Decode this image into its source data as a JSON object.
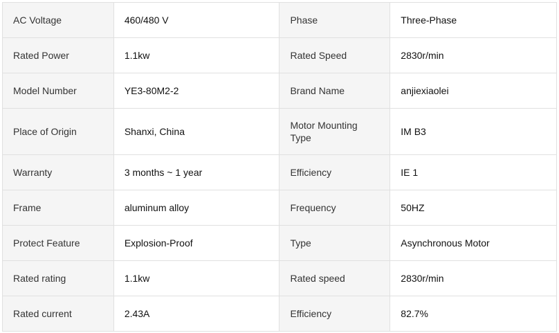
{
  "rows": [
    [
      "AC Voltage",
      "460/480 V",
      "Phase",
      "Three-Phase"
    ],
    [
      "Rated Power",
      "1.1kw",
      "Rated Speed",
      "2830r/min"
    ],
    [
      "Model Number",
      "YE3-80M2-2",
      "Brand Name",
      "anjiexiaolei"
    ],
    [
      "Place of Origin",
      "Shanxi, China",
      "Motor Mounting Type",
      "IM B3"
    ],
    [
      "Warranty",
      "3 months ~ 1 year",
      "Efficiency",
      "IE 1"
    ],
    [
      "Frame",
      "aluminum alloy",
      "Frequency",
      "50HZ"
    ],
    [
      "Protect Feature",
      "Explosion-Proof",
      "Type",
      "Asynchronous Motor"
    ],
    [
      "Rated rating",
      "1.1kw",
      "Rated speed",
      "2830r/min"
    ],
    [
      "Rated current",
      "2.43A",
      "Efficiency",
      "82.7%"
    ]
  ]
}
